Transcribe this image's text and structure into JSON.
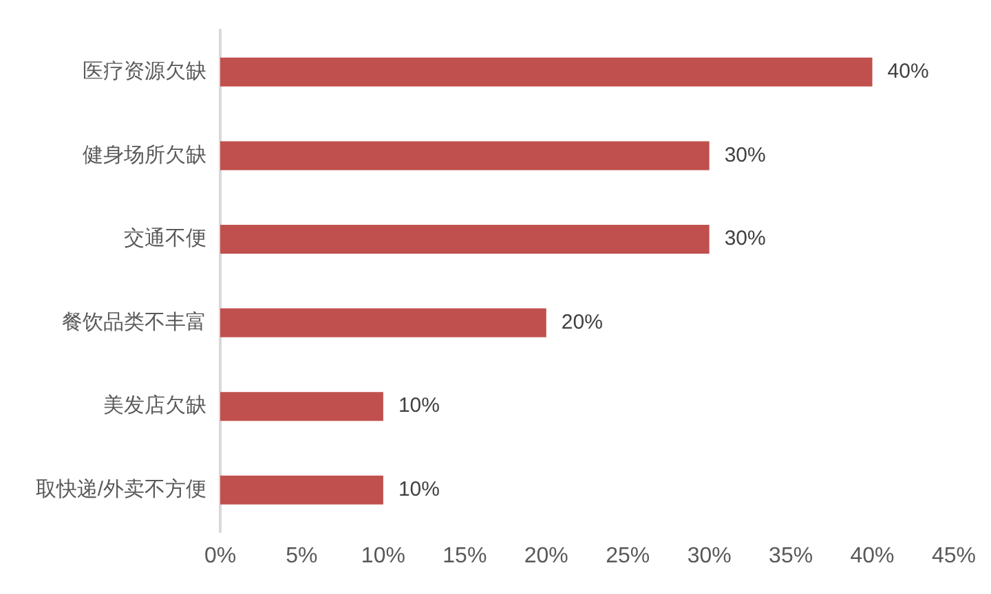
{
  "chart_data": {
    "type": "bar",
    "orientation": "horizontal",
    "categories": [
      "医疗资源欠缺",
      "健身场所欠缺",
      "交通不便",
      "餐饮品类不丰富",
      "美发店欠缺",
      "取快递/外卖不方便"
    ],
    "values": [
      40,
      30,
      30,
      20,
      10,
      10
    ],
    "color": "#c0504d",
    "value_labels": [
      "40%",
      "30%",
      "30%",
      "20%",
      "10%",
      "10%"
    ],
    "xlim": [
      0,
      45
    ],
    "xticks": [
      {
        "value": 0,
        "label": "0%"
      },
      {
        "value": 5,
        "label": "5%"
      },
      {
        "value": 10,
        "label": "10%"
      },
      {
        "value": 15,
        "label": "15%"
      },
      {
        "value": 20,
        "label": "20%"
      },
      {
        "value": 25,
        "label": "25%"
      },
      {
        "value": 30,
        "label": "30%"
      },
      {
        "value": 35,
        "label": "35%"
      },
      {
        "value": 40,
        "label": "40%"
      },
      {
        "value": 45,
        "label": "45%"
      }
    ]
  }
}
